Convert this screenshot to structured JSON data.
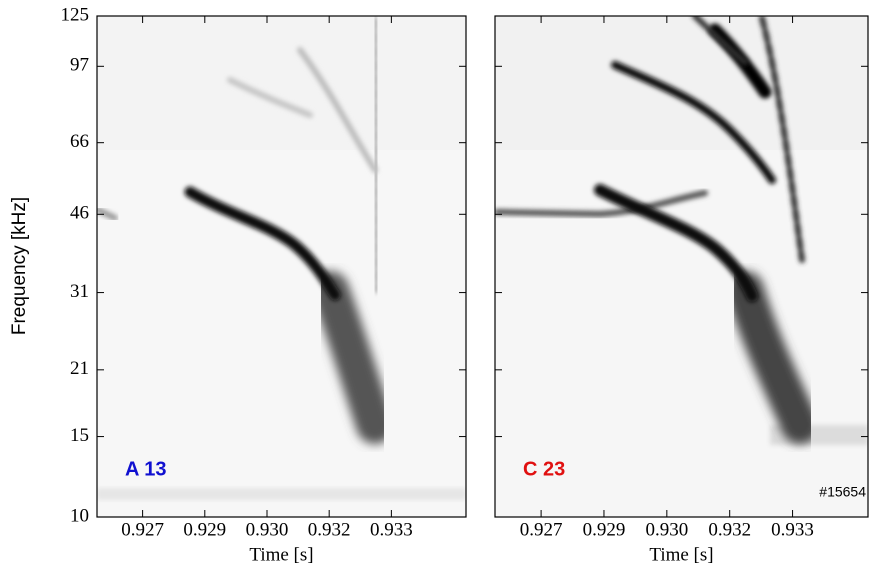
{
  "chart_data": [
    {
      "type": "spectrogram",
      "xlabel": "Time [s]",
      "ylabel": "Frequency [kHz]",
      "annotation": "A 13",
      "annotation_color": "#1010d0",
      "xlim": [
        0.9261,
        0.935
      ],
      "xticks": [
        {
          "value": 0.9272,
          "label": "0.927"
        },
        {
          "value": 0.9287,
          "label": "0.929"
        },
        {
          "value": 0.9302,
          "label": "0.930"
        },
        {
          "value": 0.9317,
          "label": "0.932"
        },
        {
          "value": 0.9332,
          "label": "0.933"
        }
      ],
      "ylim": [
        10,
        125
      ],
      "yticks": [
        10,
        15,
        21,
        31,
        46,
        66,
        97,
        125
      ],
      "log_y": true
    },
    {
      "type": "spectrogram",
      "xlabel": "Time [s]",
      "annotation": "C 23",
      "annotation_color": "#e01010",
      "shot": "#15654",
      "xlim": [
        0.9261,
        0.935
      ],
      "xticks": [
        {
          "value": 0.9272,
          "label": "0.927"
        },
        {
          "value": 0.9287,
          "label": "0.929"
        },
        {
          "value": 0.9302,
          "label": "0.930"
        },
        {
          "value": 0.9317,
          "label": "0.932"
        },
        {
          "value": 0.9332,
          "label": "0.933"
        }
      ],
      "sharey": true
    }
  ]
}
